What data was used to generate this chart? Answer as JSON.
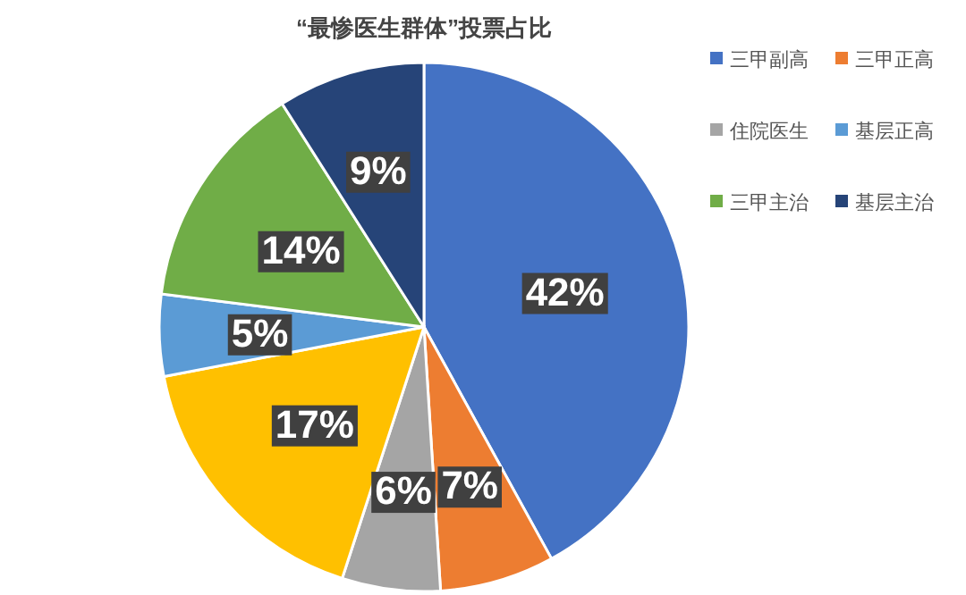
{
  "chart_data": {
    "type": "pie",
    "title": "“最惨医生群体”投票占比",
    "categories": [
      "三甲副高",
      "三甲正高",
      "住院医生",
      null,
      "基层正高",
      "三甲主治",
      "基层主治"
    ],
    "values": [
      42,
      7,
      6,
      17,
      5,
      14,
      9
    ],
    "value_labels": [
      "42%",
      "7%",
      "6%",
      "17%",
      "5%",
      "14%",
      "9%"
    ],
    "colors": [
      "#4472c4",
      "#ed7d31",
      "#a5a5a5",
      "#ffc000",
      "#5b9bd5",
      "#70ad47",
      "#264478"
    ],
    "legend": "right"
  }
}
